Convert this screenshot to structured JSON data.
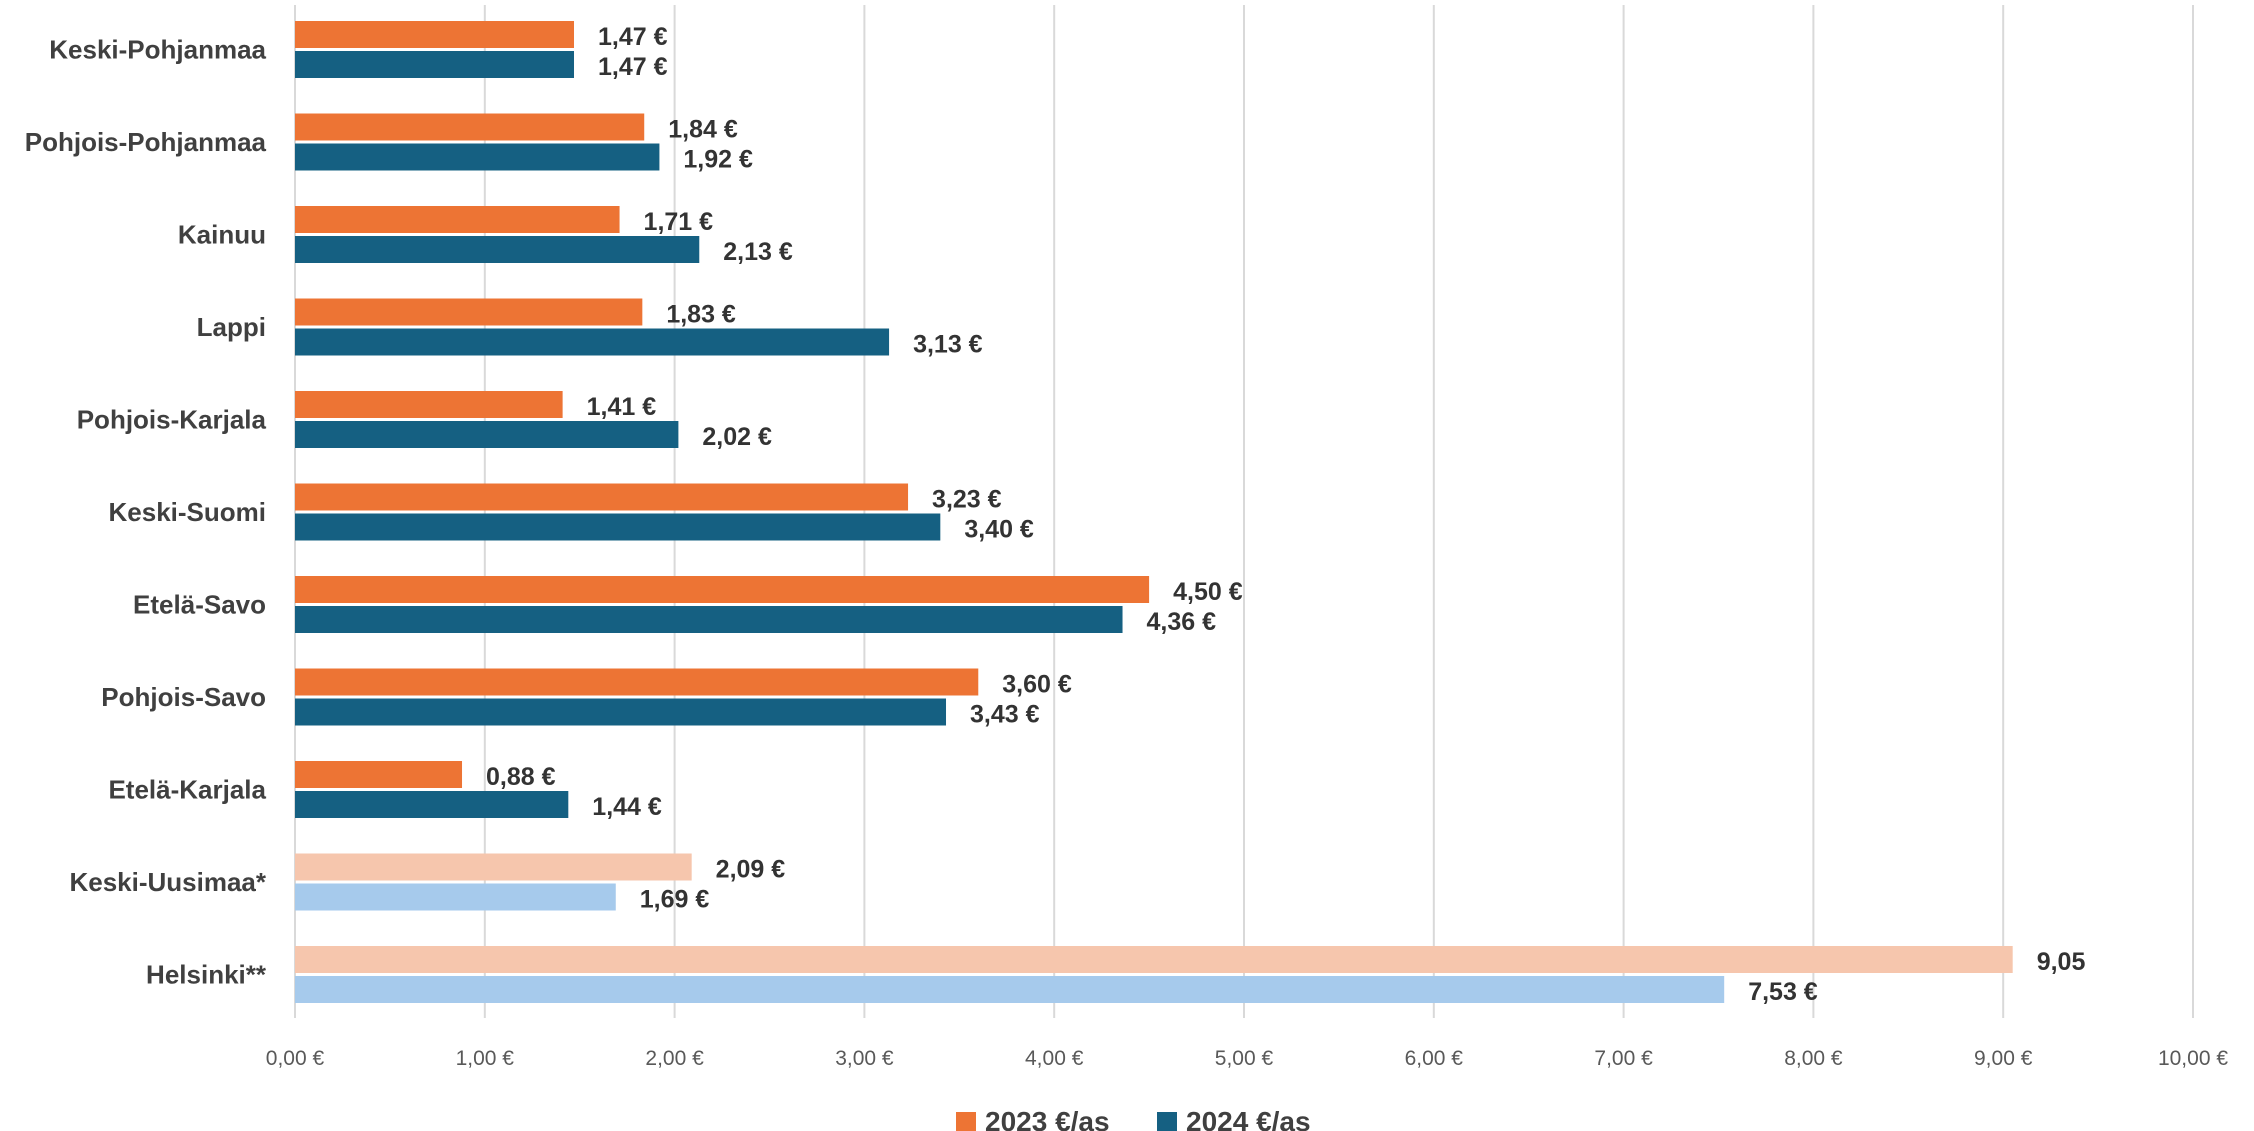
{
  "chart_data": {
    "type": "bar",
    "orientation": "horizontal",
    "categories": [
      "Keski-Pohjanmaa",
      "Pohjois-Pohjanmaa",
      "Kainuu",
      "Lappi",
      "Pohjois-Karjala",
      "Keski-Suomi",
      "Etelä-Savo",
      "Pohjois-Savo",
      "Etelä-Karjala",
      "Keski-Uusimaa*",
      "Helsinki**"
    ],
    "series": [
      {
        "name": "2023 €/as",
        "color": "#ed7434",
        "values": [
          1.47,
          1.84,
          1.71,
          1.83,
          1.41,
          3.23,
          4.5,
          3.6,
          0.88,
          2.09,
          9.05
        ],
        "labels": [
          "1,47 €",
          "1,84 €",
          "1,71 €",
          "1,83 €",
          "1,41 €",
          "3,23 €",
          "4,50 €",
          "3,60 €",
          "0,88 €",
          "2,09 €",
          "9,05"
        ]
      },
      {
        "name": "2024 €/as",
        "color": "#156082",
        "values": [
          1.47,
          1.92,
          2.13,
          3.13,
          2.02,
          3.4,
          4.36,
          3.43,
          1.44,
          1.69,
          7.53
        ],
        "labels": [
          "1,47 €",
          "1,92 €",
          "2,13 €",
          "3,13 €",
          "2,02 €",
          "3,40 €",
          "4,36 €",
          "3,43 €",
          "1,44 €",
          "1,69 €",
          "7,53 €"
        ]
      }
    ],
    "highlight_colors": {
      "categories": [
        "Keski-Uusimaa*",
        "Helsinki**"
      ],
      "colors": [
        "#f6c6ad",
        "#a6caec"
      ]
    },
    "xlim": [
      0,
      10
    ],
    "xticks": [
      0,
      1,
      2,
      3,
      4,
      5,
      6,
      7,
      8,
      9,
      10
    ],
    "xtick_labels": [
      "0,00 €",
      "1,00 €",
      "2,00 €",
      "3,00 €",
      "4,00 €",
      "5,00 €",
      "6,00 €",
      "7,00 €",
      "8,00 €",
      "9,00 €",
      "10,00 €"
    ],
    "grid": true,
    "legend_position": "bottom"
  }
}
